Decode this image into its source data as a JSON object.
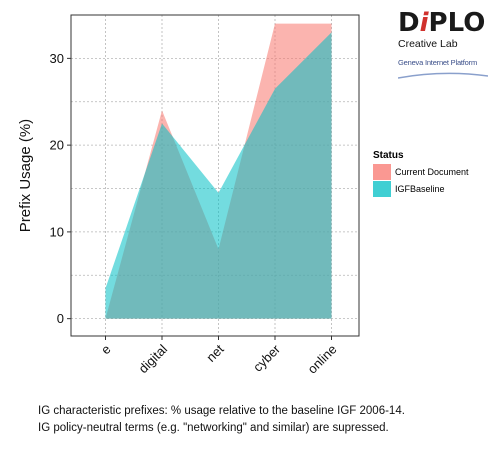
{
  "logo": {
    "name_part1": "D",
    "name_i": "i",
    "name_part2": "PLO",
    "subtitle": "Creative Lab",
    "platform": "Geneva Internet Platform"
  },
  "caption": {
    "line1": "IG characteristic prefixes: % usage relative to the baseline IGF 2006-14.",
    "line2": "IG policy-neutral terms (e.g. \"networking\" and similar) are supressed."
  },
  "chart_data": {
    "type": "area",
    "categories": [
      "e",
      "digital",
      "net",
      "cyber",
      "online"
    ],
    "ylabel": "Prefix Usage (%)",
    "xlabel": "",
    "ylim": [
      -2,
      35
    ],
    "yticks": [
      0,
      10,
      20,
      30
    ],
    "grid": true,
    "legend": {
      "title": "Status",
      "placement": "right"
    },
    "series": [
      {
        "name": "Current Document",
        "values": [
          0,
          24,
          8,
          34,
          34
        ],
        "color": "#F8766D"
      },
      {
        "name": "IGFBaseline",
        "values": [
          3.5,
          22.5,
          14.5,
          26.5,
          33
        ],
        "color": "#00BFC4"
      }
    ]
  }
}
